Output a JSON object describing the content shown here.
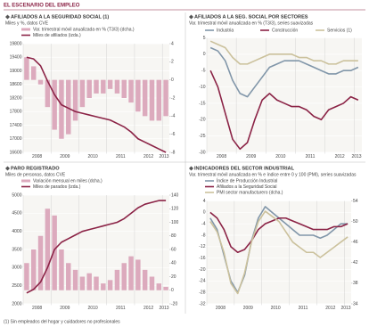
{
  "header": "EL ESCENARIO DEL EMPLEO",
  "footnote": "(1) Sin empleados del hogar y cuidadores no profesionales",
  "chart_data": [
    {
      "type": "combo",
      "title": "AFILIADOS A LA SEGURIDAD SOCIAL (1)",
      "subtitle": "Miles y %, datos CVE",
      "categories": [
        "2008",
        null,
        null,
        null,
        "2009",
        null,
        null,
        null,
        "2010",
        null,
        null,
        null,
        "2011",
        null,
        null,
        null,
        "2012",
        null,
        null,
        null,
        "2013"
      ],
      "series": [
        {
          "name": "Var. trimestral móvil anualizada en % (T3/3) (dcha.)",
          "kind": "bar",
          "axis": "y2",
          "color": "#dcaabd",
          "values": [
            2.5,
            1.5,
            -0.5,
            -3,
            -5.5,
            -6.5,
            -6,
            -4.5,
            -3,
            -2,
            -1.5,
            -1.5,
            -1,
            -1.5,
            -2,
            -2.5,
            -3.5,
            -4,
            -4.5,
            -4.5,
            -4
          ]
        },
        {
          "name": "Miles de afiliados (izda.)",
          "kind": "line",
          "color": "#8b2346",
          "values": [
            19400,
            19350,
            19150,
            18700,
            18300,
            18000,
            17900,
            17800,
            17750,
            17700,
            17650,
            17600,
            17550,
            17450,
            17350,
            17200,
            17000,
            16900,
            16800,
            16700,
            16600
          ]
        }
      ],
      "ylim": [
        16600,
        19800
      ],
      "yticks": [
        16600,
        17000,
        17400,
        17800,
        18200,
        18600,
        19000,
        19400,
        19800
      ],
      "y2lim": [
        -8,
        4
      ],
      "y2ticks": [
        4,
        2,
        0,
        -2,
        -4,
        -6,
        -8
      ],
      "grid": true
    },
    {
      "type": "combo",
      "title": "AFILIADOS A LA SEG. SOCIAL POR SECTORES",
      "subtitle": "Var. trimestral móvil anualizada en % (T3/3), series suavizadas",
      "legend_direction": "row",
      "categories": [
        "2008",
        null,
        null,
        null,
        "2009",
        null,
        null,
        null,
        "2010",
        null,
        null,
        null,
        "2011",
        null,
        null,
        null,
        "2012",
        null,
        null,
        null,
        "2013"
      ],
      "series": [
        {
          "name": "Industria",
          "kind": "line",
          "color": "#8196a9",
          "values": [
            2,
            1,
            -2,
            -8,
            -12,
            -13,
            -10,
            -7,
            -4,
            -3,
            -2,
            -2,
            -2,
            -3,
            -4,
            -5,
            -6,
            -6,
            -5,
            -5,
            -4
          ]
        },
        {
          "name": "Construcción",
          "kind": "line",
          "color": "#8b2346",
          "values": [
            -5,
            -10,
            -18,
            -26,
            -29,
            -27,
            -20,
            -14,
            -12,
            -14,
            -15,
            -16,
            -16,
            -17,
            -19,
            -20,
            -17,
            -16,
            -15,
            -13,
            -14
          ]
        },
        {
          "name": "Servicios (1)",
          "kind": "line",
          "color": "#cbc19c",
          "values": [
            4,
            3,
            2,
            -1,
            -3,
            -3,
            -2,
            -1,
            0,
            0,
            0,
            0,
            -1,
            -1,
            -2,
            -2,
            -3,
            -3,
            -2,
            -2,
            -2
          ]
        }
      ],
      "ylim": [
        -30,
        5
      ],
      "yticks": [
        5,
        0,
        -5,
        -10,
        -15,
        -20,
        -25,
        -30
      ],
      "grid": true
    },
    {
      "type": "combo",
      "title": "PARO REGISTRADO",
      "subtitle": "Miles de personas, datos CVE",
      "categories": [
        "2008",
        null,
        null,
        null,
        "2009",
        null,
        null,
        null,
        "2010",
        null,
        null,
        null,
        "2011",
        null,
        null,
        null,
        "2012",
        null,
        null,
        null,
        "2013"
      ],
      "series": [
        {
          "name": "Variación mensual en miles (dcha.)",
          "kind": "bar",
          "axis": "y2",
          "color": "#dcaabd",
          "values": [
            40,
            60,
            80,
            120,
            110,
            60,
            40,
            30,
            20,
            25,
            20,
            10,
            15,
            30,
            40,
            50,
            45,
            30,
            20,
            10,
            5
          ]
        },
        {
          "name": "Miles de parados (izda.)",
          "kind": "line",
          "color": "#8b2346",
          "values": [
            2300,
            2400,
            2600,
            3000,
            3500,
            3700,
            3800,
            3900,
            4000,
            4050,
            4100,
            4150,
            4200,
            4250,
            4350,
            4500,
            4650,
            4750,
            4800,
            4850,
            4850
          ]
        }
      ],
      "ylim": [
        2000,
        5000
      ],
      "yticks": [
        2000,
        2500,
        3000,
        3500,
        4000,
        4500,
        5000
      ],
      "y2lim": [
        -20,
        140
      ],
      "y2ticks": [
        140,
        120,
        100,
        80,
        60,
        40,
        20,
        0,
        -20
      ],
      "grid": true
    },
    {
      "type": "combo",
      "title": "INDICADORES DEL SECTOR INDUSTRIAL",
      "subtitle": "Var. trimestral móvil anualizada en % e índice entre 0 y 100 (PMI), series suavizadas",
      "categories": [
        "2008",
        null,
        null,
        null,
        "2009",
        null,
        null,
        null,
        "2010",
        null,
        null,
        null,
        "2011",
        null,
        null,
        null,
        "2012",
        null,
        null,
        null,
        "2013"
      ],
      "series": [
        {
          "name": "Índice de Producción Industrial",
          "kind": "line",
          "color": "#8196a9",
          "values": [
            -2,
            -6,
            -15,
            -24,
            -28,
            -22,
            -10,
            -2,
            2,
            0,
            -2,
            -4,
            -6,
            -8,
            -8,
            -8,
            -9,
            -8,
            -6,
            -4,
            -4
          ]
        },
        {
          "name": "Afiliados a la Seguridad Social",
          "kind": "line",
          "color": "#8b2346",
          "values": [
            0,
            -2,
            -6,
            -12,
            -14,
            -13,
            -10,
            -6,
            -4,
            -3,
            -2,
            -2,
            -3,
            -4,
            -5,
            -6,
            -6,
            -6,
            -5,
            -5,
            -4
          ]
        },
        {
          "name": "PMI sector manufacturero (dcha.)",
          "kind": "line",
          "axis": "y2",
          "color": "#cbc19c",
          "values": [
            50,
            48,
            44,
            38,
            36,
            40,
            46,
            50,
            52,
            51,
            50,
            48,
            46,
            45,
            44,
            44,
            43,
            44,
            45,
            46,
            47
          ]
        }
      ],
      "ylim": [
        -32,
        4
      ],
      "yticks": [
        4,
        0,
        -4,
        -8,
        -12,
        -16,
        -20,
        -24,
        -28,
        -32
      ],
      "y2lim": [
        34,
        54
      ],
      "y2ticks": [
        54,
        50,
        46,
        42,
        38,
        34
      ],
      "grid": true
    }
  ]
}
